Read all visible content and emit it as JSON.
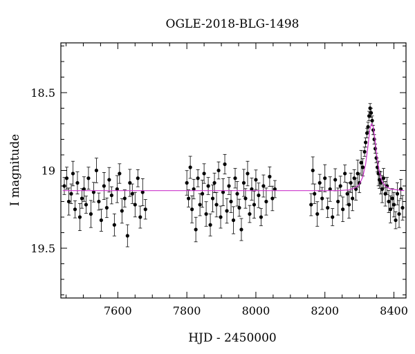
{
  "chart_data": {
    "type": "scatter",
    "title": "OGLE-2018-BLG-1498",
    "xlabel": "HJD - 2450000",
    "ylabel": "I magnitude",
    "xlim": [
      7435,
      8435
    ],
    "ylim": [
      19.82,
      18.18
    ],
    "y_inverted": true,
    "grid": false,
    "x_major_ticks": [
      7600,
      7800,
      8000,
      8200,
      8400
    ],
    "x_tick_labels": [
      "7600",
      "7800",
      "8000",
      "8200",
      "8400"
    ],
    "y_major_ticks": [
      18.5,
      19,
      19.5
    ],
    "y_tick_labels": [
      "18.5",
      "19",
      "19.5"
    ],
    "colors": {
      "points": "#000000",
      "model": "#cc33cc"
    },
    "baseline_mag": 19.13,
    "model": {
      "name": "",
      "x": [
        7440,
        8240,
        8270,
        8290,
        8300,
        8310,
        8318,
        8325,
        8330,
        8335,
        8340,
        8345,
        8350,
        8357,
        8365,
        8375,
        8390,
        8430
      ],
      "y": [
        19.13,
        19.13,
        19.125,
        19.11,
        19.09,
        19.04,
        18.96,
        18.84,
        18.74,
        18.7,
        18.72,
        18.8,
        18.9,
        19.0,
        19.07,
        19.1,
        19.12,
        19.13
      ]
    },
    "series": [
      {
        "name": "",
        "x": [
          7445,
          7452,
          7458,
          7465,
          7470,
          7476,
          7483,
          7490,
          7496,
          7502,
          7508,
          7515,
          7522,
          7530,
          7538,
          7545,
          7552,
          7560,
          7568,
          7575,
          7582,
          7590,
          7598,
          7605,
          7612,
          7620,
          7628,
          7635,
          7642,
          7650,
          7658,
          7665,
          7672,
          7680,
          7800,
          7805,
          7810,
          7815,
          7820,
          7826,
          7832,
          7838,
          7845,
          7850,
          7856,
          7862,
          7868,
          7875,
          7880,
          7886,
          7892,
          7898,
          7905,
          7910,
          7916,
          7922,
          7928,
          7935,
          7940,
          7946,
          7952,
          7958,
          7965,
          7970,
          7976,
          7982,
          7988,
          7995,
          8000,
          8008,
          8015,
          8022,
          8030,
          8040,
          8048,
          8055,
          8160,
          8165,
          8170,
          8178,
          8185,
          8192,
          8200,
          8208,
          8215,
          8222,
          8230,
          8238,
          8245,
          8252,
          8258,
          8265,
          8270,
          8275,
          8280,
          8285,
          8290,
          8295,
          8300,
          8305,
          8310,
          8315,
          8318,
          8322,
          8325,
          8328,
          8331,
          8334,
          8337,
          8340,
          8343,
          8346,
          8349,
          8352,
          8355,
          8358,
          8362,
          8366,
          8370,
          8375,
          8380,
          8385,
          8390,
          8395,
          8400,
          8405,
          8410,
          8415,
          8420,
          8425
        ],
        "y": [
          19.1,
          19.05,
          19.2,
          19.15,
          19.02,
          19.25,
          19.08,
          19.3,
          19.18,
          19.12,
          19.22,
          19.05,
          19.28,
          19.14,
          19.0,
          19.2,
          19.32,
          19.1,
          19.24,
          19.06,
          19.16,
          19.35,
          19.12,
          19.02,
          19.26,
          19.18,
          19.42,
          19.08,
          19.15,
          19.22,
          19.05,
          19.3,
          19.14,
          19.25,
          19.08,
          19.18,
          18.98,
          19.25,
          19.12,
          19.38,
          19.05,
          19.22,
          19.15,
          19.02,
          19.28,
          19.1,
          19.35,
          19.18,
          19.08,
          19.22,
          19.0,
          19.3,
          19.14,
          18.96,
          19.26,
          19.1,
          19.2,
          19.32,
          19.05,
          19.15,
          19.24,
          19.38,
          19.08,
          19.18,
          19.02,
          19.28,
          19.12,
          19.22,
          19.06,
          19.16,
          19.3,
          19.1,
          19.2,
          19.04,
          19.18,
          19.12,
          19.22,
          19.0,
          19.15,
          19.28,
          19.08,
          19.18,
          19.05,
          19.24,
          19.12,
          19.3,
          19.06,
          19.2,
          19.1,
          19.25,
          19.02,
          19.15,
          19.22,
          19.08,
          19.18,
          19.05,
          19.12,
          19.02,
          19.08,
          18.95,
          18.98,
          18.88,
          18.82,
          18.76,
          18.72,
          18.65,
          18.6,
          18.63,
          18.68,
          18.74,
          18.8,
          18.86,
          18.92,
          18.98,
          19.02,
          19.06,
          19.08,
          19.12,
          19.05,
          19.15,
          19.1,
          19.2,
          19.25,
          19.18,
          19.22,
          19.32,
          19.15,
          19.28,
          19.12,
          19.24
        ]
      }
    ]
  }
}
